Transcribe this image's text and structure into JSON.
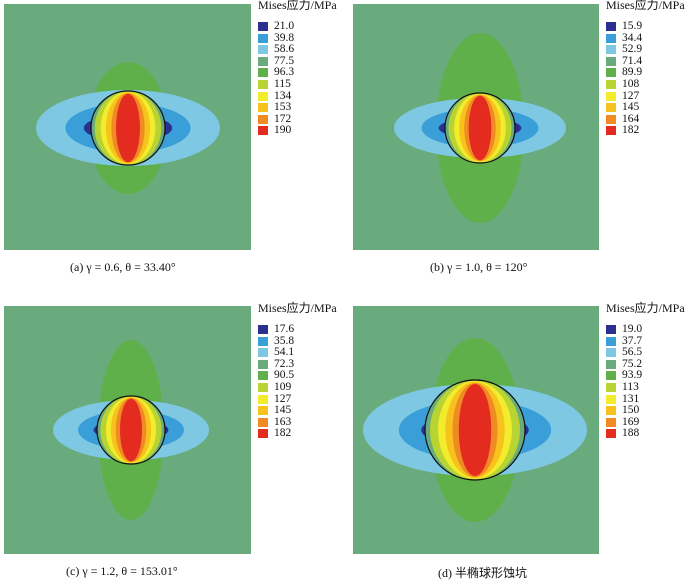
{
  "figure": {
    "panels": [
      {
        "id": "a",
        "legend_title": "Mises应力/MPa",
        "legend_values": [
          "21.0",
          "39.8",
          "58.6",
          "77.5",
          "96.3",
          "115",
          "134",
          "153",
          "172",
          "190"
        ],
        "caption": "(a) γ = 0.6, θ = 33.40°"
      },
      {
        "id": "b",
        "legend_title": "Mises应力/MPa",
        "legend_values": [
          "15.9",
          "34.4",
          "52.9",
          "71.4",
          "89.9",
          "108",
          "127",
          "145",
          "164",
          "182"
        ],
        "caption": "(b) γ = 1.0, θ = 120°"
      },
      {
        "id": "c",
        "legend_title": "Mises应力/MPa",
        "legend_values": [
          "17.6",
          "35.8",
          "54.1",
          "72.3",
          "90.5",
          "109",
          "127",
          "145",
          "163",
          "182"
        ],
        "caption": "(c) γ = 1.2, θ = 153.01°"
      },
      {
        "id": "d",
        "legend_title": "Mises应力/MPa",
        "legend_values": [
          "19.0",
          "37.7",
          "56.5",
          "75.2",
          "93.9",
          "113",
          "131",
          "150",
          "169",
          "188"
        ],
        "caption": "(d) 半椭球形蚀坑"
      }
    ],
    "colors": {
      "background": "#6aab7e",
      "scale": [
        "#2b2f8f",
        "#3a9fd8",
        "#7ec8e3",
        "#6aab7e",
        "#5fb04a",
        "#b8d432",
        "#f3ec2c",
        "#f7c21e",
        "#f08a22",
        "#e32b1f"
      ]
    }
  }
}
